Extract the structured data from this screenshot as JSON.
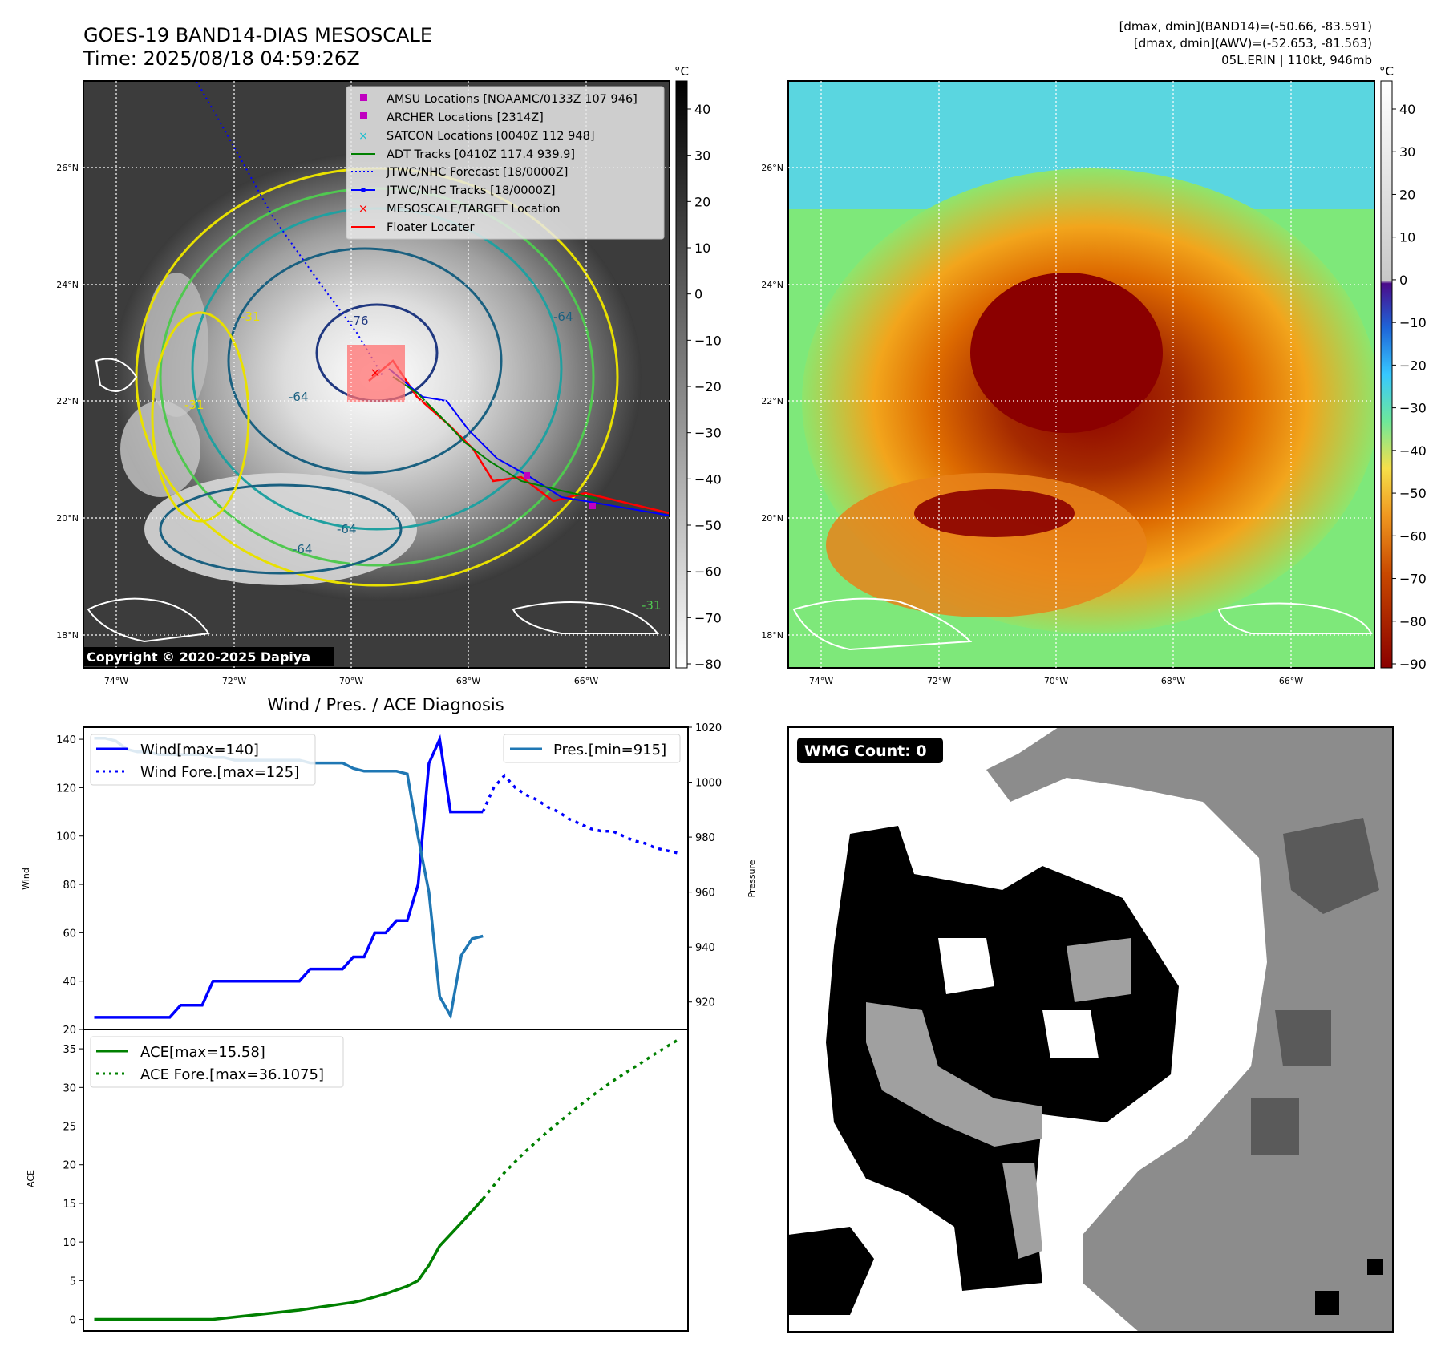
{
  "header": {
    "title": "GOES-19 BAND14-DIAS MESOSCALE",
    "time": "Time: 2025/08/18 04:59:26Z",
    "stat1": "[dmax, dmin](BAND14)=(-50.66, -83.591)",
    "stat2": "[dmax, dmin](AWV)=(-52.653, -81.563)",
    "storm": "05L.ERIN | 110kt, 946mb"
  },
  "map": {
    "lon_ticks": [
      "74°W",
      "72°W",
      "70°W",
      "68°W",
      "66°W"
    ],
    "lat_ticks": [
      "26°N",
      "24°N",
      "22°N",
      "20°N",
      "18°N"
    ],
    "copyright": "Copyright © 2020-2025 Dapiya",
    "legend": [
      {
        "label": "AMSU Locations [NOAAMC/0133Z 107 946]",
        "marker": "square",
        "color": "#c000c0"
      },
      {
        "label": "ARCHER Locations [2314Z]",
        "marker": "square",
        "color": "#c000c0"
      },
      {
        "label": "SATCON Locations [0040Z 112 948]",
        "marker": "x",
        "color": "#17becf"
      },
      {
        "label": "ADT Tracks [0410Z 117.4 939.9]",
        "marker": "line",
        "color": "#008000"
      },
      {
        "label": "JTWC/NHC Forecast [18/0000Z]",
        "marker": "dotted",
        "color": "#0000ff"
      },
      {
        "label": "JTWC/NHC Tracks [18/0000Z]",
        "marker": "line-dot",
        "color": "#0000ff"
      },
      {
        "label": "MESOSCALE/TARGET Location",
        "marker": "x",
        "color": "#ff0000"
      },
      {
        "label": "Floater Locater",
        "marker": "line",
        "color": "#ff0000"
      }
    ],
    "contour_labels": [
      "-76",
      "-64",
      "-64",
      "-64",
      "-64",
      "-31",
      "-31",
      "-31"
    ]
  },
  "colorbars": {
    "unit": "°C",
    "left_ticks": [
      "40",
      "30",
      "20",
      "10",
      "0",
      "−10",
      "−20",
      "−30",
      "−40",
      "−50",
      "−60",
      "−70",
      "−80"
    ],
    "right_ticks": [
      "40",
      "30",
      "20",
      "10",
      "0",
      "−10",
      "−20",
      "−30",
      "−40",
      "−50",
      "−60",
      "−70",
      "−80",
      "−90"
    ]
  },
  "wmg": {
    "label": "WMG Count: 0"
  },
  "chart_data": [
    {
      "type": "line",
      "title": "Wind / Pres. / ACE Diagnosis",
      "ylabel": "Wind",
      "ylim": [
        20,
        145
      ],
      "yticks": [
        "20",
        "40",
        "60",
        "80",
        "100",
        "120",
        "140"
      ],
      "y2label": "Pressure",
      "y2lim": [
        910,
        1020
      ],
      "y2ticks": [
        "920",
        "940",
        "960",
        "980",
        "1000",
        "1020"
      ],
      "legend_left": [
        "Wind[max=140]",
        "Wind Fore.[max=125]"
      ],
      "legend_right": [
        "Pres.[min=915]"
      ],
      "series": [
        {
          "name": "Wind[max=140]",
          "axis": "left",
          "style": "solid",
          "color": "#0000ff",
          "x": [
            0,
            6,
            12,
            18,
            24,
            30,
            36,
            42,
            48,
            54,
            60,
            66,
            72,
            78,
            84,
            90,
            96,
            102,
            108,
            114,
            120,
            126,
            132,
            138,
            144,
            150,
            156,
            162,
            168,
            174,
            180,
            186,
            192,
            198,
            204,
            210,
            216
          ],
          "y": [
            25,
            25,
            25,
            25,
            25,
            25,
            25,
            25,
            30,
            30,
            30,
            40,
            40,
            40,
            40,
            40,
            40,
            40,
            40,
            40,
            45,
            45,
            45,
            45,
            50,
            50,
            60,
            60,
            65,
            65,
            80,
            130,
            140,
            110,
            110,
            110,
            110
          ]
        },
        {
          "name": "Wind Fore.[max=125]",
          "axis": "left",
          "style": "dotted",
          "color": "#0000ff",
          "x": [
            216,
            222,
            228,
            234,
            240,
            246,
            252,
            258,
            264,
            270,
            276,
            282,
            288,
            294,
            300,
            306,
            312,
            318,
            324
          ],
          "y": [
            110,
            120,
            125,
            120,
            117,
            115,
            112,
            110,
            107,
            105,
            103,
            102,
            102,
            100,
            98,
            97,
            95,
            94,
            93
          ]
        },
        {
          "name": "Pres.[min=915]",
          "axis": "right",
          "style": "solid",
          "color": "#1f77b4",
          "x": [
            0,
            6,
            12,
            18,
            24,
            30,
            36,
            42,
            48,
            54,
            60,
            66,
            72,
            78,
            84,
            90,
            96,
            102,
            108,
            114,
            120,
            126,
            132,
            138,
            144,
            150,
            156,
            162,
            168,
            174,
            180,
            186,
            192,
            198,
            204,
            210,
            216
          ],
          "y": [
            1016,
            1016,
            1015,
            1012,
            1011,
            1011,
            1010,
            1010,
            1010,
            1010,
            1010,
            1009,
            1009,
            1008,
            1008,
            1008,
            1008,
            1008,
            1008,
            1008,
            1007,
            1007,
            1007,
            1007,
            1005,
            1004,
            1004,
            1004,
            1004,
            1003,
            980,
            960,
            922,
            915,
            937,
            943,
            944
          ]
        }
      ]
    },
    {
      "type": "line",
      "ylabel": "ACE",
      "ylim": [
        -1.5,
        37.5
      ],
      "yticks": [
        "0",
        "5",
        "10",
        "15",
        "20",
        "25",
        "30",
        "35"
      ],
      "legend": [
        "ACE[max=15.58]",
        "ACE Fore.[max=36.1075]"
      ],
      "series": [
        {
          "name": "ACE[max=15.58]",
          "style": "solid",
          "color": "#008000",
          "x": [
            0,
            12,
            24,
            36,
            48,
            60,
            66,
            78,
            90,
            102,
            114,
            126,
            132,
            144,
            150,
            156,
            162,
            168,
            174,
            180,
            186,
            192,
            198,
            204,
            210,
            216
          ],
          "y": [
            0,
            0,
            0,
            0,
            0,
            0,
            0,
            0.3,
            0.6,
            0.9,
            1.2,
            1.6,
            1.8,
            2.2,
            2.5,
            2.9,
            3.3,
            3.8,
            4.3,
            5,
            7,
            9.5,
            11,
            12.5,
            14,
            15.58
          ]
        },
        {
          "name": "ACE Fore.[max=36.1075]",
          "style": "dotted",
          "color": "#008000",
          "x": [
            216,
            228,
            240,
            252,
            264,
            276,
            288,
            300,
            312,
            324
          ],
          "y": [
            15.58,
            19,
            21.8,
            24.3,
            26.6,
            28.8,
            30.8,
            32.6,
            34.4,
            36.1
          ]
        }
      ]
    }
  ]
}
